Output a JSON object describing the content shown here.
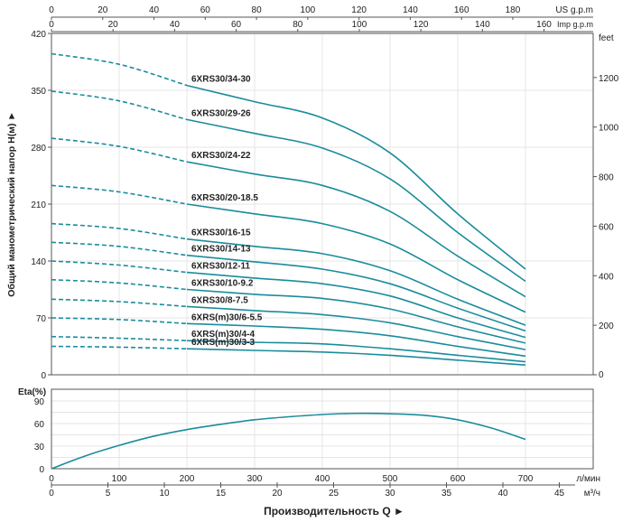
{
  "chart_data": [
    {
      "type": "line",
      "title": "",
      "xlabel": "Производительность Q",
      "ylabel": "Общий манометрический напор H(м)",
      "x_unit": "л/мин",
      "xlim": [
        0,
        800
      ],
      "ylim": [
        0,
        420
      ],
      "y_ticks": [
        0,
        70,
        140,
        210,
        280,
        350,
        420
      ],
      "y2_label": "feet",
      "y2_ticks": [
        0,
        200,
        400,
        600,
        800,
        1000,
        1200
      ],
      "top_axis_us": {
        "label": "US g.p.m",
        "ticks": [
          0,
          20,
          40,
          60,
          80,
          100,
          120,
          140,
          160,
          180
        ]
      },
      "top_axis_imp": {
        "label": "Imp g.p.m",
        "ticks": [
          0,
          20,
          40,
          60,
          80,
          100,
          120,
          140,
          160
        ]
      },
      "grid": true,
      "dashed_range": [
        0,
        200
      ],
      "x": [
        0,
        100,
        200,
        300,
        400,
        500,
        600,
        700
      ],
      "series": [
        {
          "name": "6XRS30/34-30",
          "values": [
            395,
            382,
            356,
            336,
            316,
            273,
            198,
            130
          ]
        },
        {
          "name": "6XRS30/29-26",
          "values": [
            349,
            337,
            314,
            297,
            279,
            241,
            175,
            115
          ]
        },
        {
          "name": "6XRS30/24-22",
          "values": [
            291,
            281,
            262,
            247,
            233,
            201,
            146,
            96
          ]
        },
        {
          "name": "6XRS30/20-18.5",
          "values": [
            233,
            225,
            210,
            198,
            186,
            161,
            117,
            77
          ]
        },
        {
          "name": "6XRS30/16-15",
          "values": [
            186,
            180,
            167,
            158,
            149,
            128,
            93,
            61
          ]
        },
        {
          "name": "6XRS30/14-13",
          "values": [
            163,
            158,
            147,
            139,
            130,
            112,
            82,
            54
          ]
        },
        {
          "name": "6XRS30/12-11",
          "values": [
            140,
            135,
            126,
            119,
            112,
            97,
            70,
            46
          ]
        },
        {
          "name": "6XRS30/10-9.2",
          "values": [
            117,
            113,
            105,
            99,
            94,
            81,
            59,
            39
          ]
        },
        {
          "name": "6XRS30/8-7.5",
          "values": [
            93,
            90,
            84,
            79,
            74,
            64,
            47,
            31
          ]
        },
        {
          "name": "6XRS(m)30/6-5.5",
          "values": [
            70,
            68,
            63,
            60,
            56,
            48,
            35,
            23
          ]
        },
        {
          "name": "6XRS(m)30/4-4",
          "values": [
            47,
            45,
            42,
            40,
            38,
            32,
            24,
            16
          ]
        },
        {
          "name": "6XRS(m)30/3-3",
          "values": [
            35,
            34,
            32,
            30,
            28,
            24,
            18,
            12
          ]
        }
      ]
    },
    {
      "type": "line",
      "ylabel": "Eta(%)",
      "ylim": [
        0,
        90
      ],
      "y_ticks": [
        0,
        30,
        60,
        90
      ],
      "x_ticks_lmin": [
        0,
        100,
        200,
        300,
        400,
        500,
        600,
        700
      ],
      "x_unit_lmin": "л/мин",
      "x_ticks_m3h": [
        0,
        5,
        10,
        15,
        20,
        25,
        30,
        35,
        40,
        45
      ],
      "x_unit_m3h": "м³/ч",
      "series": [
        {
          "name": "Eta",
          "x": [
            0,
            50,
            100,
            150,
            200,
            250,
            300,
            350,
            400,
            450,
            500,
            550,
            600,
            650,
            700
          ],
          "values": [
            0,
            17,
            31,
            43,
            52,
            59,
            65,
            69,
            72,
            73.5,
            73,
            71,
            65,
            54,
            39
          ]
        }
      ]
    }
  ],
  "colors": {
    "curve": "#1a8c9c",
    "grid": "#e4e4e4",
    "axis": "#555555"
  }
}
